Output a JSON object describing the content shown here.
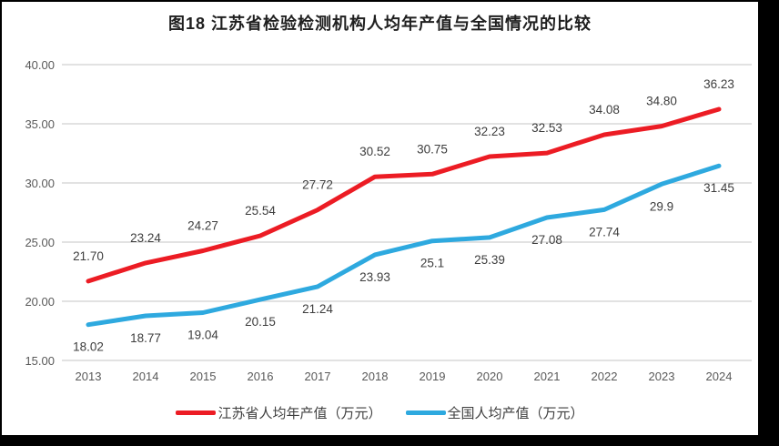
{
  "title": "图18  江苏省检验检测机构人均年产值与全国情况的比较",
  "chart_data": {
    "type": "line",
    "title": "图18  江苏省检验检测机构人均年产值与全国情况的比较",
    "categories": [
      "2013",
      "2014",
      "2015",
      "2016",
      "2017",
      "2018",
      "2019",
      "2020",
      "2021",
      "2022",
      "2023",
      "2024"
    ],
    "series": [
      {
        "name": "江苏省人均年产值（万元）",
        "color": "#ec1c24",
        "values": [
          21.7,
          23.24,
          24.27,
          25.54,
          27.72,
          30.52,
          30.75,
          32.23,
          32.53,
          34.08,
          34.8,
          36.23
        ],
        "labels": [
          "21.70",
          "23.24",
          "24.27",
          "25.54",
          "27.72",
          "30.52",
          "30.75",
          "32.23",
          "32.53",
          "34.08",
          "34.80",
          "36.23"
        ],
        "label_side": "above"
      },
      {
        "name": "全国人均产值（万元）",
        "color": "#2ea9df",
        "values": [
          18.02,
          18.77,
          19.04,
          20.15,
          21.24,
          23.93,
          25.1,
          25.39,
          27.08,
          27.74,
          29.9,
          31.45
        ],
        "labels": [
          "18.02",
          "18.77",
          "19.04",
          "20.15",
          "21.24",
          "23.93",
          "25.1",
          "25.39",
          "27.08",
          "27.74",
          "29.9",
          "31.45"
        ],
        "label_side": "below"
      }
    ],
    "ylim": [
      15,
      40
    ],
    "yticks": [
      {
        "value": 15,
        "label": "15.00"
      },
      {
        "value": 20,
        "label": "20.00"
      },
      {
        "value": 25,
        "label": "25.00"
      },
      {
        "value": 30,
        "label": "30.00"
      },
      {
        "value": 35,
        "label": "35.00"
      },
      {
        "value": 40,
        "label": "40.00"
      }
    ],
    "xlabel": "",
    "ylabel": "",
    "grid": "horizontal",
    "legend_position": "bottom"
  },
  "colors": {
    "grid": "#d9d9d9",
    "axis_text": "#595959",
    "data_label_text": "#3d3d3d",
    "frame": "#000000",
    "background": "#ffffff"
  }
}
